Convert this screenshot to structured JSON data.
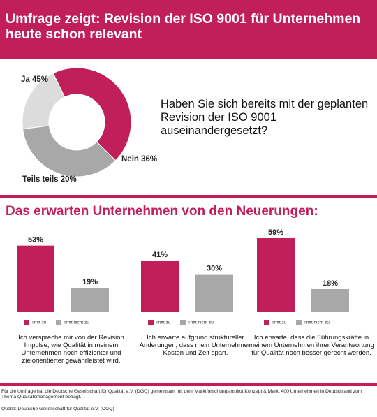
{
  "header": {
    "title": "Umfrage zeigt: Revision der ISO 9001 für Unternehmen heute schon relevant"
  },
  "colors": {
    "accent": "#c01f5a",
    "no": "#a8a8a8",
    "partly": "#dcdcdc"
  },
  "pie": {
    "question": "Haben Sie sich bereits mit der geplanten Revision der ISO 9001 auseinandergesetzt?"
  },
  "section_title": "Das erwarten Unternehmen von den Neuerungen:",
  "legend": {
    "applies": "Trifft zu",
    "not_applies": "Trifft nicht zu"
  },
  "chart_data": [
    {
      "type": "pie",
      "categories": [
        "Ja",
        "Nein",
        "Teils teils"
      ],
      "values": [
        45,
        36,
        20
      ],
      "labels": [
        "Ja 45%",
        "Nein 36%",
        "Teils teils 20%"
      ],
      "title": "Haben Sie sich bereits mit der geplanten Revision der ISO 9001 auseinandergesetzt?"
    },
    {
      "type": "bar",
      "categories": [
        "Trifft zu",
        "Trifft nicht zu"
      ],
      "values": [
        53,
        19
      ],
      "labels": [
        "53%",
        "19%"
      ],
      "caption": "Ich verspreche mir von der Revision Impulse, wie Qualität in meinem Unternehmen noch effizienter und zielorientierter gewährleistet wird."
    },
    {
      "type": "bar",
      "categories": [
        "Trifft zu",
        "Trifft nicht zu"
      ],
      "values": [
        41,
        30
      ],
      "labels": [
        "41%",
        "30%"
      ],
      "caption": "Ich erwarte aufgrund struktureller Änderungen, dass mein Unternehmen Kosten und Zeit spart."
    },
    {
      "type": "bar",
      "categories": [
        "Trifft zu",
        "Trifft nicht zu"
      ],
      "values": [
        59,
        18
      ],
      "labels": [
        "59%",
        "18%"
      ],
      "caption": "Ich erwarte, dass die Führungskräfte in meinem Unternehmen ihrer Verantwortung für Qualität noch besser gerecht werden."
    }
  ],
  "footer": {
    "note": "Für die Umfrage hat die Deutsche Gesellschaft für Qualität e.V. (DGQ) gemeinsam mit dem Marktforschungsinstitut Konzept & Markt 400 Unternehmen in Deutschland zum Thema Qualitätsmanagement befragt.",
    "source": "Quelle: Deutsche Gesellschaft für Qualität e.V. (DGQ)"
  }
}
